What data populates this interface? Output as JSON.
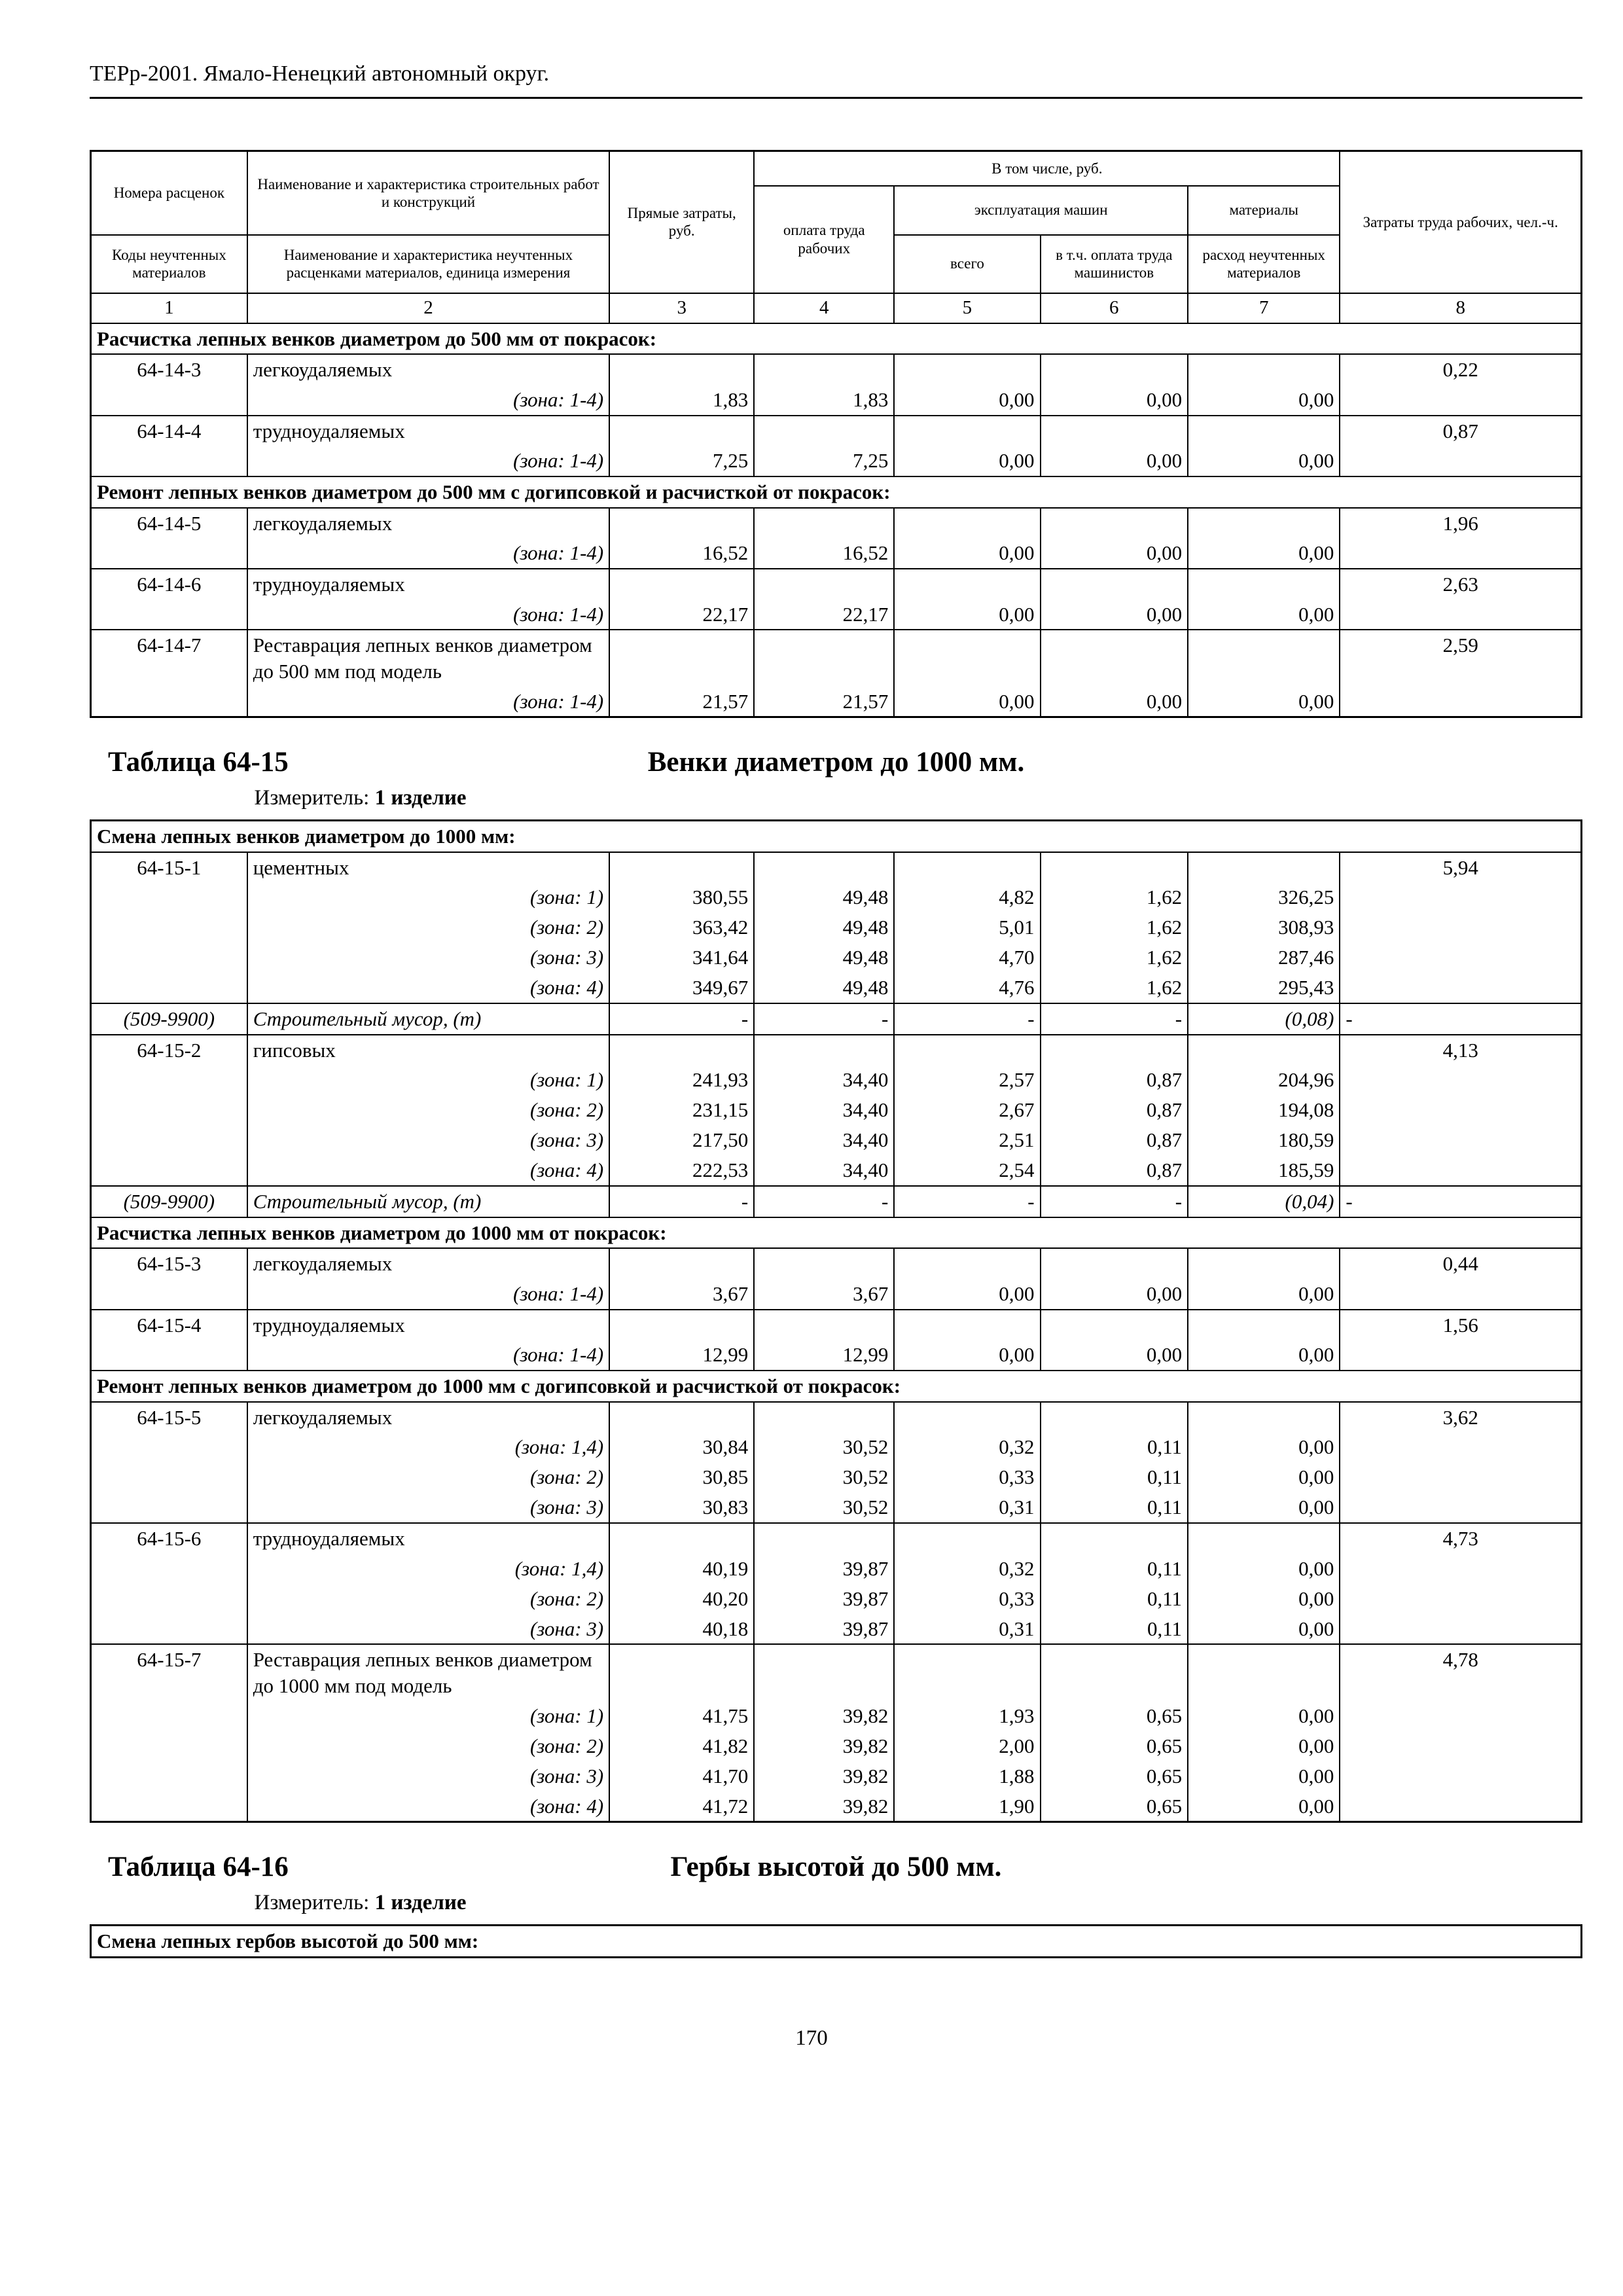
{
  "page": {
    "doc_header": "ТЕРр-2001.  Ямало-Ненецкий автономный округ.",
    "page_number": "170"
  },
  "table_header": {
    "col1_top": "Номера расценок",
    "col1_bottom": "Коды неучтенных материалов",
    "col2_top": "Наименование и характеристика строительных работ и конструкций",
    "col2_bottom": "Наименование и характеристика неучтенных расценками материалов, единица измерения",
    "col3": "Прямые затраты, руб.",
    "group_including": "В том числе, руб.",
    "col4": "оплата труда рабочих",
    "group_machines": "эксплуатация машин",
    "col5": "всего",
    "col6": "в т.ч. оплата труда машинистов",
    "group_materials": "материалы",
    "col7": "расход неучтенных материалов",
    "col8": "Затраты труда рабочих, чел.-ч.",
    "column_numbers": [
      "1",
      "2",
      "3",
      "4",
      "5",
      "6",
      "7",
      "8"
    ]
  },
  "headings": [
    {
      "title": "Таблица 64-15",
      "subtitle": "Венки диаметром до 1000 мм.",
      "measure_label": "Измеритель:",
      "measure_value": "1 изделие"
    },
    {
      "title": "Таблица 64-16",
      "subtitle": "Гербы высотой до 500 мм.",
      "measure_label": "Измеритель:",
      "measure_value": "1 изделие"
    }
  ],
  "tables": [
    {
      "rows": [
        {
          "type": "section",
          "text": "Расчистка лепных венков диаметром до 500 мм от покрасок:"
        },
        {
          "type": "item",
          "code": "64-14-3",
          "name": "легкоудаляемых",
          "labor": "0,22"
        },
        {
          "type": "zone",
          "zone": "(зона: 1-4)",
          "v": [
            "1,83",
            "1,83",
            "0,00",
            "0,00",
            "0,00"
          ]
        },
        {
          "type": "item",
          "code": "64-14-4",
          "name": "трудноудаляемых",
          "labor": "0,87"
        },
        {
          "type": "zone",
          "zone": "(зона: 1-4)",
          "v": [
            "7,25",
            "7,25",
            "0,00",
            "0,00",
            "0,00"
          ]
        },
        {
          "type": "section",
          "text": "Ремонт лепных венков диаметром до 500 мм с догипсовкой и расчисткой от покрасок:"
        },
        {
          "type": "item",
          "code": "64-14-5",
          "name": "легкоудаляемых",
          "labor": "1,96"
        },
        {
          "type": "zone",
          "zone": "(зона: 1-4)",
          "v": [
            "16,52",
            "16,52",
            "0,00",
            "0,00",
            "0,00"
          ]
        },
        {
          "type": "item",
          "code": "64-14-6",
          "name": "трудноудаляемых",
          "labor": "2,63"
        },
        {
          "type": "zone",
          "zone": "(зона: 1-4)",
          "v": [
            "22,17",
            "22,17",
            "0,00",
            "0,00",
            "0,00"
          ]
        },
        {
          "type": "item",
          "code": "64-14-7",
          "name": "Реставрация лепных венков диаметром до 500 мм под модель",
          "labor": "2,59"
        },
        {
          "type": "zone",
          "zone": "(зона: 1-4)",
          "v": [
            "21,57",
            "21,57",
            "0,00",
            "0,00",
            "0,00"
          ]
        }
      ]
    },
    {
      "rows": [
        {
          "type": "section",
          "text": "Смена лепных венков диаметром до 1000 мм:"
        },
        {
          "type": "item",
          "code": "64-15-1",
          "name": "цементных",
          "labor": "5,94"
        },
        {
          "type": "zone",
          "zone": "(зона: 1)",
          "v": [
            "380,55",
            "49,48",
            "4,82",
            "1,62",
            "326,25"
          ]
        },
        {
          "type": "zone",
          "zone": "(зона: 2)",
          "v": [
            "363,42",
            "49,48",
            "5,01",
            "1,62",
            "308,93"
          ]
        },
        {
          "type": "zone",
          "zone": "(зона: 3)",
          "v": [
            "341,64",
            "49,48",
            "4,70",
            "1,62",
            "287,46"
          ]
        },
        {
          "type": "zone",
          "zone": "(зона: 4)",
          "v": [
            "349,67",
            "49,48",
            "4,76",
            "1,62",
            "295,43"
          ]
        },
        {
          "type": "material",
          "code": "(509-9900)",
          "name": "Строительный мусор, (т)",
          "v": [
            "-",
            "-",
            "-",
            "-",
            "(0,08)"
          ],
          "labor": "-"
        },
        {
          "type": "item",
          "code": "64-15-2",
          "name": "гипсовых",
          "labor": "4,13"
        },
        {
          "type": "zone",
          "zone": "(зона: 1)",
          "v": [
            "241,93",
            "34,40",
            "2,57",
            "0,87",
            "204,96"
          ]
        },
        {
          "type": "zone",
          "zone": "(зона: 2)",
          "v": [
            "231,15",
            "34,40",
            "2,67",
            "0,87",
            "194,08"
          ]
        },
        {
          "type": "zone",
          "zone": "(зона: 3)",
          "v": [
            "217,50",
            "34,40",
            "2,51",
            "0,87",
            "180,59"
          ]
        },
        {
          "type": "zone",
          "zone": "(зона: 4)",
          "v": [
            "222,53",
            "34,40",
            "2,54",
            "0,87",
            "185,59"
          ]
        },
        {
          "type": "material",
          "code": "(509-9900)",
          "name": "Строительный мусор, (т)",
          "v": [
            "-",
            "-",
            "-",
            "-",
            "(0,04)"
          ],
          "labor": "-"
        },
        {
          "type": "section",
          "text": "Расчистка лепных венков диаметром до 1000 мм от покрасок:"
        },
        {
          "type": "item",
          "code": "64-15-3",
          "name": "легкоудаляемых",
          "labor": "0,44"
        },
        {
          "type": "zone",
          "zone": "(зона: 1-4)",
          "v": [
            "3,67",
            "3,67",
            "0,00",
            "0,00",
            "0,00"
          ]
        },
        {
          "type": "item",
          "code": "64-15-4",
          "name": "трудноудаляемых",
          "labor": "1,56"
        },
        {
          "type": "zone",
          "zone": "(зона: 1-4)",
          "v": [
            "12,99",
            "12,99",
            "0,00",
            "0,00",
            "0,00"
          ]
        },
        {
          "type": "section",
          "text": "Ремонт лепных венков диаметром до 1000 мм с догипсовкой и расчисткой от покрасок:"
        },
        {
          "type": "item",
          "code": "64-15-5",
          "name": "легкоудаляемых",
          "labor": "3,62"
        },
        {
          "type": "zone",
          "zone": "(зона: 1,4)",
          "v": [
            "30,84",
            "30,52",
            "0,32",
            "0,11",
            "0,00"
          ]
        },
        {
          "type": "zone",
          "zone": "(зона: 2)",
          "v": [
            "30,85",
            "30,52",
            "0,33",
            "0,11",
            "0,00"
          ]
        },
        {
          "type": "zone",
          "zone": "(зона: 3)",
          "v": [
            "30,83",
            "30,52",
            "0,31",
            "0,11",
            "0,00"
          ]
        },
        {
          "type": "item",
          "code": "64-15-6",
          "name": "трудноудаляемых",
          "labor": "4,73"
        },
        {
          "type": "zone",
          "zone": "(зона: 1,4)",
          "v": [
            "40,19",
            "39,87",
            "0,32",
            "0,11",
            "0,00"
          ]
        },
        {
          "type": "zone",
          "zone": "(зона: 2)",
          "v": [
            "40,20",
            "39,87",
            "0,33",
            "0,11",
            "0,00"
          ]
        },
        {
          "type": "zone",
          "zone": "(зона: 3)",
          "v": [
            "40,18",
            "39,87",
            "0,31",
            "0,11",
            "0,00"
          ]
        },
        {
          "type": "item",
          "code": "64-15-7",
          "name": "Реставрация лепных венков диаметром до 1000 мм под модель",
          "labor": "4,78"
        },
        {
          "type": "zone",
          "zone": "(зона: 1)",
          "v": [
            "41,75",
            "39,82",
            "1,93",
            "0,65",
            "0,00"
          ]
        },
        {
          "type": "zone",
          "zone": "(зона: 2)",
          "v": [
            "41,82",
            "39,82",
            "2,00",
            "0,65",
            "0,00"
          ]
        },
        {
          "type": "zone",
          "zone": "(зона: 3)",
          "v": [
            "41,70",
            "39,82",
            "1,88",
            "0,65",
            "0,00"
          ]
        },
        {
          "type": "zone",
          "zone": "(зона: 4)",
          "v": [
            "41,72",
            "39,82",
            "1,90",
            "0,65",
            "0,00"
          ]
        }
      ]
    },
    {
      "rows": [
        {
          "type": "section",
          "text": "Смена лепных гербов высотой до 500 мм:"
        }
      ]
    }
  ]
}
